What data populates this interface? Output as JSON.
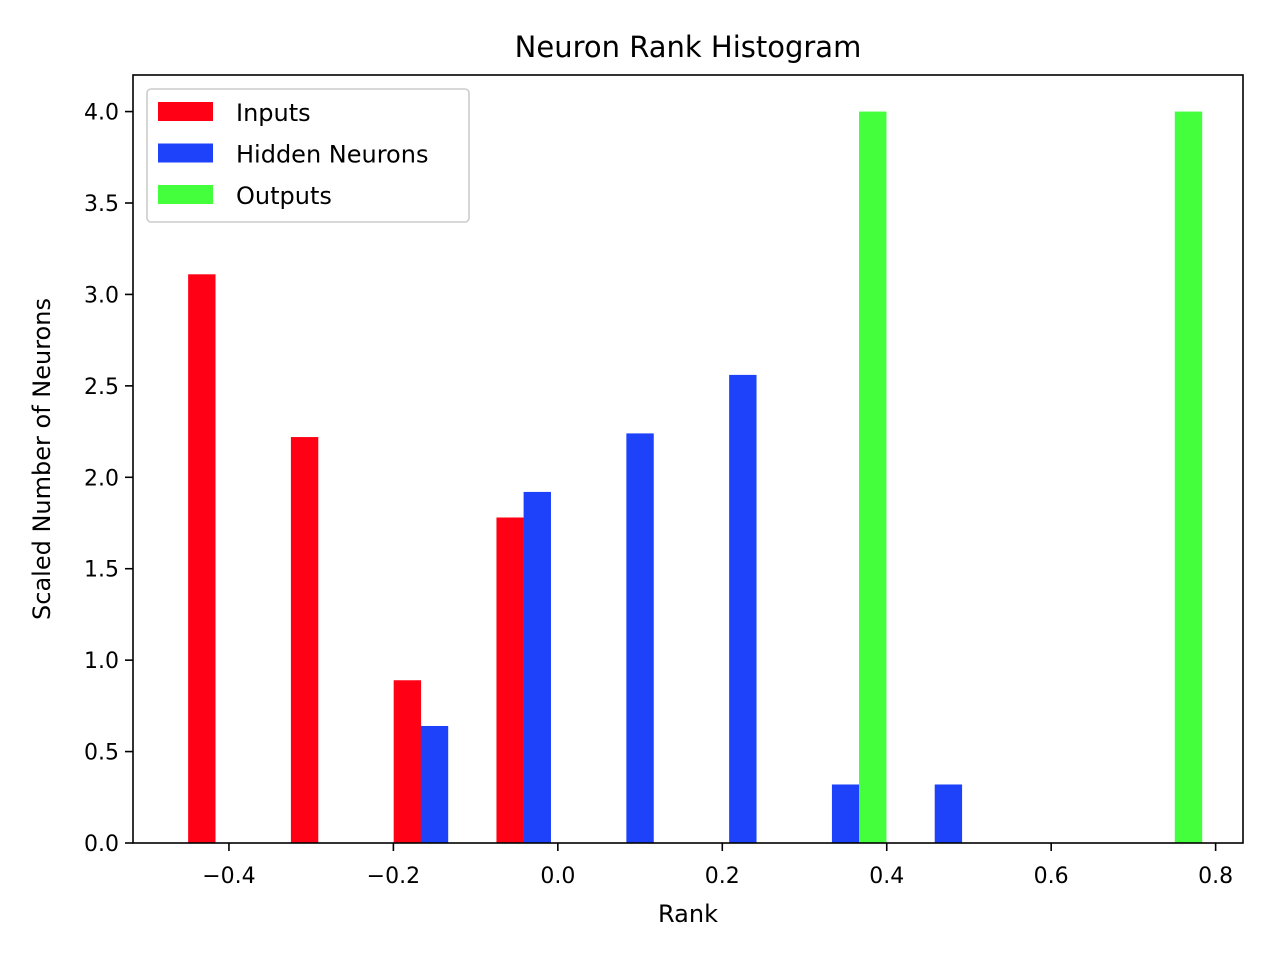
{
  "chart_data": {
    "type": "bar",
    "title": "Neuron Rank Histogram",
    "xlabel": "Rank",
    "ylabel": "Scaled Number of Neurons",
    "xlim": [
      -0.5167,
      0.8333
    ],
    "ylim": [
      0,
      4.2
    ],
    "xticks": [
      -0.4,
      -0.2,
      0.0,
      0.2,
      0.4,
      0.6,
      0.8
    ],
    "xtick_labels": [
      "−0.4",
      "−0.2",
      "0.0",
      "0.2",
      "0.4",
      "0.6",
      "0.8"
    ],
    "yticks": [
      0.0,
      0.5,
      1.0,
      1.5,
      2.0,
      2.5,
      3.0,
      3.5,
      4.0
    ],
    "ytick_labels": [
      "0.0",
      "0.5",
      "1.0",
      "1.5",
      "2.0",
      "2.5",
      "3.0",
      "3.5",
      "4.0"
    ],
    "bar_width": 0.0333,
    "grid": false,
    "legend_position": "top-left",
    "series": [
      {
        "name": "Inputs",
        "color": "#ff0014",
        "bars": [
          {
            "x": -0.433,
            "value": 3.11
          },
          {
            "x": -0.308,
            "value": 2.22
          },
          {
            "x": -0.183,
            "value": 0.89
          },
          {
            "x": -0.058,
            "value": 1.78
          }
        ]
      },
      {
        "name": "Hidden Neurons",
        "color": "#1e41fa",
        "bars": [
          {
            "x": -0.15,
            "value": 0.64
          },
          {
            "x": -0.025,
            "value": 1.92
          },
          {
            "x": 0.1,
            "value": 2.24
          },
          {
            "x": 0.225,
            "value": 2.56
          },
          {
            "x": 0.35,
            "value": 0.32
          },
          {
            "x": 0.475,
            "value": 0.32
          }
        ]
      },
      {
        "name": "Outputs",
        "color": "#44ff3c",
        "bars": [
          {
            "x": 0.383,
            "value": 4.0
          },
          {
            "x": 0.767,
            "value": 4.0
          }
        ]
      }
    ]
  }
}
